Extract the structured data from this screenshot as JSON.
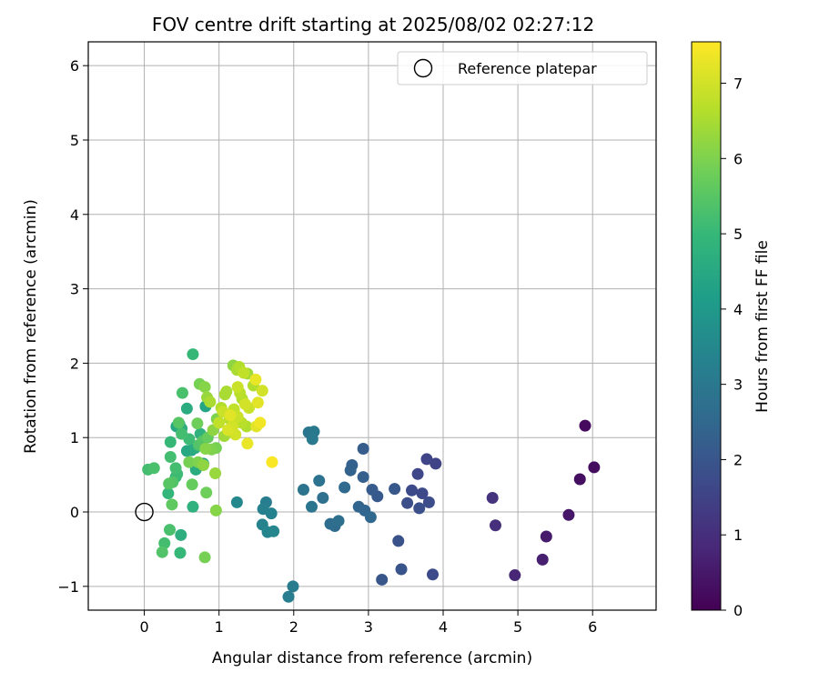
{
  "chart_data": {
    "type": "scatter",
    "title": "FOV centre drift starting at 2025/08/02 02:27:12",
    "xlabel": "Angular distance from reference (arcmin)",
    "ylabel": "Rotation from reference (arcmin)",
    "xlim": [
      -0.75,
      6.85
    ],
    "ylim": [
      -1.32,
      6.32
    ],
    "x_ticks": [
      0,
      1,
      2,
      3,
      4,
      5,
      6
    ],
    "y_ticks": [
      -1,
      0,
      1,
      2,
      3,
      4,
      5,
      6
    ],
    "grid": true,
    "legend": {
      "placement": "top-right",
      "entries": [
        "Reference platepar"
      ]
    },
    "reference_point": {
      "x": 0,
      "y": 0
    },
    "colorbar": {
      "label": "Hours from first FF file",
      "colormap": "viridis",
      "range": [
        0,
        7.55
      ],
      "ticks": [
        0,
        1,
        2,
        3,
        4,
        5,
        6,
        7
      ]
    },
    "points": [
      {
        "x": 5.9,
        "y": 1.16,
        "h": 0.2
      },
      {
        "x": 6.02,
        "y": 0.6,
        "h": 0.25
      },
      {
        "x": 5.83,
        "y": 0.44,
        "h": 0.3
      },
      {
        "x": 5.68,
        "y": -0.04,
        "h": 0.45
      },
      {
        "x": 5.38,
        "y": -0.33,
        "h": 0.55
      },
      {
        "x": 5.33,
        "y": -0.64,
        "h": 0.65
      },
      {
        "x": 4.96,
        "y": -0.85,
        "h": 0.8
      },
      {
        "x": 4.7,
        "y": -0.18,
        "h": 1.0
      },
      {
        "x": 4.66,
        "y": 0.19,
        "h": 1.1
      },
      {
        "x": 3.9,
        "y": 0.65,
        "h": 1.5
      },
      {
        "x": 3.78,
        "y": 0.71,
        "h": 1.55
      },
      {
        "x": 3.66,
        "y": 0.51,
        "h": 1.6
      },
      {
        "x": 3.72,
        "y": 0.25,
        "h": 1.65
      },
      {
        "x": 3.58,
        "y": 0.29,
        "h": 1.7
      },
      {
        "x": 3.81,
        "y": 0.13,
        "h": 1.75
      },
      {
        "x": 3.52,
        "y": 0.12,
        "h": 1.8
      },
      {
        "x": 3.68,
        "y": 0.05,
        "h": 1.85
      },
      {
        "x": 3.4,
        "y": -0.39,
        "h": 1.9
      },
      {
        "x": 3.44,
        "y": -0.77,
        "h": 1.95
      },
      {
        "x": 3.86,
        "y": -0.84,
        "h": 1.7
      },
      {
        "x": 3.18,
        "y": -0.91,
        "h": 2.0
      },
      {
        "x": 3.35,
        "y": 0.31,
        "h": 2.05
      },
      {
        "x": 3.12,
        "y": 0.21,
        "h": 2.1
      },
      {
        "x": 3.05,
        "y": 0.3,
        "h": 2.15
      },
      {
        "x": 2.93,
        "y": 0.85,
        "h": 2.2
      },
      {
        "x": 2.93,
        "y": 0.47,
        "h": 2.25
      },
      {
        "x": 2.78,
        "y": 0.63,
        "h": 2.3
      },
      {
        "x": 2.76,
        "y": 0.56,
        "h": 2.35
      },
      {
        "x": 2.87,
        "y": 0.07,
        "h": 2.4
      },
      {
        "x": 2.95,
        "y": 0.02,
        "h": 2.45
      },
      {
        "x": 3.03,
        "y": -0.07,
        "h": 2.5
      },
      {
        "x": 2.68,
        "y": 0.33,
        "h": 2.55
      },
      {
        "x": 2.55,
        "y": -0.19,
        "h": 2.6
      },
      {
        "x": 2.49,
        "y": -0.16,
        "h": 2.65
      },
      {
        "x": 2.6,
        "y": -0.12,
        "h": 2.7
      },
      {
        "x": 2.39,
        "y": 0.19,
        "h": 2.75
      },
      {
        "x": 2.34,
        "y": 0.42,
        "h": 2.8
      },
      {
        "x": 2.13,
        "y": 0.3,
        "h": 2.85
      },
      {
        "x": 2.24,
        "y": 0.07,
        "h": 2.9
      },
      {
        "x": 2.2,
        "y": 1.07,
        "h": 2.95
      },
      {
        "x": 2.27,
        "y": 1.08,
        "h": 3.0
      },
      {
        "x": 2.25,
        "y": 0.98,
        "h": 3.05
      },
      {
        "x": 1.99,
        "y": -1.0,
        "h": 3.1
      },
      {
        "x": 1.93,
        "y": -1.14,
        "h": 3.15
      },
      {
        "x": 1.63,
        "y": 0.13,
        "h": 3.2
      },
      {
        "x": 1.59,
        "y": 0.04,
        "h": 3.25
      },
      {
        "x": 1.7,
        "y": -0.02,
        "h": 3.3
      },
      {
        "x": 1.58,
        "y": -0.17,
        "h": 3.35
      },
      {
        "x": 1.65,
        "y": -0.27,
        "h": 3.4
      },
      {
        "x": 1.73,
        "y": -0.26,
        "h": 3.45
      },
      {
        "x": 1.24,
        "y": 0.13,
        "h": 3.5
      },
      {
        "x": 0.65,
        "y": 2.12,
        "h": 5.0
      },
      {
        "x": 0.57,
        "y": 1.39,
        "h": 4.6
      },
      {
        "x": 0.82,
        "y": 1.42,
        "h": 4.4
      },
      {
        "x": 0.47,
        "y": 1.18,
        "h": 4.3
      },
      {
        "x": 0.43,
        "y": 1.15,
        "h": 4.5
      },
      {
        "x": 0.5,
        "y": 1.12,
        "h": 4.7
      },
      {
        "x": 0.75,
        "y": 1.05,
        "h": 4.8
      },
      {
        "x": 0.68,
        "y": 0.86,
        "h": 4.6
      },
      {
        "x": 0.57,
        "y": 0.82,
        "h": 4.5
      },
      {
        "x": 0.63,
        "y": 0.83,
        "h": 4.4
      },
      {
        "x": 0.79,
        "y": 0.65,
        "h": 4.3
      },
      {
        "x": 0.69,
        "y": 0.57,
        "h": 4.6
      },
      {
        "x": 0.32,
        "y": 0.25,
        "h": 4.9
      },
      {
        "x": 0.65,
        "y": 0.07,
        "h": 4.8
      },
      {
        "x": 0.49,
        "y": -0.31,
        "h": 4.7
      },
      {
        "x": 0.48,
        "y": -0.55,
        "h": 5.0
      },
      {
        "x": 0.35,
        "y": 0.94,
        "h": 5.0
      },
      {
        "x": 0.05,
        "y": 0.57,
        "h": 5.2
      },
      {
        "x": 0.13,
        "y": 0.59,
        "h": 5.3
      },
      {
        "x": 0.42,
        "y": 0.59,
        "h": 5.2
      },
      {
        "x": 0.44,
        "y": 0.51,
        "h": 5.1
      },
      {
        "x": 0.42,
        "y": 0.47,
        "h": 5.0
      },
      {
        "x": 0.38,
        "y": 0.4,
        "h": 5.4
      },
      {
        "x": 0.33,
        "y": 0.38,
        "h": 5.5
      },
      {
        "x": 0.37,
        "y": 0.1,
        "h": 5.6
      },
      {
        "x": 0.34,
        "y": -0.24,
        "h": 5.3
      },
      {
        "x": 0.27,
        "y": -0.42,
        "h": 5.2
      },
      {
        "x": 0.24,
        "y": -0.54,
        "h": 5.4
      },
      {
        "x": 0.35,
        "y": 0.74,
        "h": 5.2
      },
      {
        "x": 0.51,
        "y": 1.6,
        "h": 5.3
      },
      {
        "x": 0.5,
        "y": 1.05,
        "h": 5.2
      },
      {
        "x": 0.46,
        "y": 1.2,
        "h": 5.5
      },
      {
        "x": 0.64,
        "y": 0.37,
        "h": 5.7
      },
      {
        "x": 0.83,
        "y": 0.26,
        "h": 5.8
      },
      {
        "x": 0.81,
        "y": -0.61,
        "h": 5.9
      },
      {
        "x": 0.96,
        "y": 0.02,
        "h": 6.1
      },
      {
        "x": 0.6,
        "y": 0.67,
        "h": 5.9
      },
      {
        "x": 0.72,
        "y": 0.67,
        "h": 6.0
      },
      {
        "x": 0.79,
        "y": 0.63,
        "h": 6.2
      },
      {
        "x": 0.95,
        "y": 0.52,
        "h": 6.3
      },
      {
        "x": 0.82,
        "y": 0.85,
        "h": 6.1
      },
      {
        "x": 0.9,
        "y": 0.84,
        "h": 6.0
      },
      {
        "x": 0.96,
        "y": 0.86,
        "h": 5.9
      },
      {
        "x": 0.71,
        "y": 1.19,
        "h": 5.8
      },
      {
        "x": 0.74,
        "y": 1.72,
        "h": 5.9
      },
      {
        "x": 0.81,
        "y": 1.68,
        "h": 6.1
      },
      {
        "x": 0.84,
        "y": 1.54,
        "h": 6.3
      },
      {
        "x": 0.88,
        "y": 1.48,
        "h": 6.5
      },
      {
        "x": 1.03,
        "y": 1.4,
        "h": 6.6
      },
      {
        "x": 1.07,
        "y": 1.02,
        "h": 6.4
      },
      {
        "x": 1.14,
        "y": 1.25,
        "h": 6.7
      },
      {
        "x": 1.0,
        "y": 1.2,
        "h": 6.8
      },
      {
        "x": 1.08,
        "y": 1.58,
        "h": 6.5
      },
      {
        "x": 1.05,
        "y": 1.35,
        "h": 6.9
      },
      {
        "x": 1.19,
        "y": 1.97,
        "h": 6.2
      },
      {
        "x": 1.24,
        "y": 1.91,
        "h": 6.5
      },
      {
        "x": 1.27,
        "y": 1.95,
        "h": 6.6
      },
      {
        "x": 1.33,
        "y": 1.87,
        "h": 6.8
      },
      {
        "x": 1.38,
        "y": 1.86,
        "h": 6.4
      },
      {
        "x": 1.46,
        "y": 1.7,
        "h": 6.6
      },
      {
        "x": 1.25,
        "y": 1.68,
        "h": 6.9
      },
      {
        "x": 1.28,
        "y": 1.6,
        "h": 6.7
      },
      {
        "x": 1.31,
        "y": 1.52,
        "h": 6.6
      },
      {
        "x": 1.35,
        "y": 1.45,
        "h": 7.0
      },
      {
        "x": 1.4,
        "y": 1.4,
        "h": 6.9
      },
      {
        "x": 1.2,
        "y": 1.38,
        "h": 6.8
      },
      {
        "x": 1.25,
        "y": 1.28,
        "h": 6.9
      },
      {
        "x": 1.3,
        "y": 1.2,
        "h": 6.7
      },
      {
        "x": 1.37,
        "y": 1.15,
        "h": 6.6
      },
      {
        "x": 1.18,
        "y": 1.15,
        "h": 7.0
      },
      {
        "x": 1.1,
        "y": 1.62,
        "h": 6.5
      },
      {
        "x": 1.22,
        "y": 1.04,
        "h": 7.0
      },
      {
        "x": 1.38,
        "y": 0.92,
        "h": 7.3
      },
      {
        "x": 1.49,
        "y": 1.78,
        "h": 7.3
      },
      {
        "x": 1.58,
        "y": 1.63,
        "h": 7.0
      },
      {
        "x": 1.52,
        "y": 1.47,
        "h": 7.2
      },
      {
        "x": 1.55,
        "y": 1.2,
        "h": 7.4
      },
      {
        "x": 1.5,
        "y": 1.15,
        "h": 7.2
      },
      {
        "x": 1.71,
        "y": 0.67,
        "h": 7.5
      },
      {
        "x": 1.12,
        "y": 1.1,
        "h": 7.1
      },
      {
        "x": 1.15,
        "y": 1.3,
        "h": 7.2
      },
      {
        "x": 0.97,
        "y": 1.25,
        "h": 6.0
      },
      {
        "x": 0.92,
        "y": 1.1,
        "h": 6.2
      },
      {
        "x": 0.85,
        "y": 1.0,
        "h": 5.7
      },
      {
        "x": 0.78,
        "y": 0.95,
        "h": 5.5
      },
      {
        "x": 0.73,
        "y": 0.9,
        "h": 5.4
      },
      {
        "x": 0.6,
        "y": 0.98,
        "h": 5.1
      }
    ]
  }
}
